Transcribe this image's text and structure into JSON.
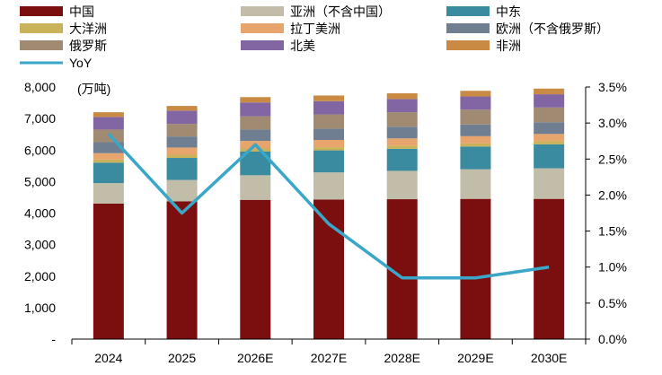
{
  "chart_data": {
    "type": "bar",
    "stacked": true,
    "categories": [
      "2024",
      "2025",
      "2026E",
      "2027E",
      "2028E",
      "2029E",
      "2030E"
    ],
    "series": [
      {
        "name": "中国",
        "color": "#7b0f0f",
        "values": [
          4300,
          4370,
          4420,
          4430,
          4440,
          4450,
          4450
        ]
      },
      {
        "name": "亚洲（不含中国）",
        "color": "#c2bda8",
        "values": [
          650,
          680,
          780,
          860,
          900,
          940,
          970
        ]
      },
      {
        "name": "中东",
        "color": "#3a8aa0",
        "values": [
          650,
          700,
          750,
          700,
          700,
          720,
          760
        ]
      },
      {
        "name": "大洋洲",
        "color": "#c9b25a",
        "values": [
          100,
          100,
          100,
          100,
          100,
          100,
          100
        ]
      },
      {
        "name": "拉丁美洲",
        "color": "#e7a46c",
        "values": [
          200,
          230,
          240,
          230,
          230,
          230,
          230
        ]
      },
      {
        "name": "欧洲（不含俄罗斯）",
        "color": "#6f7e90",
        "values": [
          350,
          350,
          360,
          360,
          370,
          370,
          370
        ]
      },
      {
        "name": "俄罗斯",
        "color": "#a18a72",
        "values": [
          400,
          400,
          420,
          450,
          460,
          470,
          470
        ]
      },
      {
        "name": "北美",
        "color": "#8166a3",
        "values": [
          400,
          420,
          440,
          420,
          420,
          420,
          420
        ]
      },
      {
        "name": "非洲",
        "color": "#c98a44",
        "values": [
          150,
          150,
          170,
          180,
          180,
          180,
          180
        ]
      }
    ],
    "line_series": {
      "name": "YoY",
      "color": "#3aa6c8",
      "values": [
        2.85,
        1.75,
        2.7,
        1.6,
        0.85,
        0.85,
        1.0
      ]
    },
    "y_left": {
      "unit": "(万吨)",
      "ylim": [
        0,
        8000
      ],
      "ticks": [
        0,
        1000,
        2000,
        3000,
        4000,
        5000,
        6000,
        7000,
        8000
      ],
      "tick_labels": [
        "-",
        "1,000",
        "2,000",
        "3,000",
        "4,000",
        "5,000",
        "6,000",
        "7,000",
        "8,000"
      ]
    },
    "y_right": {
      "ylim": [
        0,
        3.5
      ],
      "ticks": [
        0,
        0.5,
        1,
        1.5,
        2,
        2.5,
        3,
        3.5
      ],
      "tick_labels": [
        "0.0%",
        "0.5%",
        "1.0%",
        "1.5%",
        "2.0%",
        "2.5%",
        "3.0%",
        "3.5%"
      ]
    },
    "legend_position": "top",
    "grid": false
  }
}
